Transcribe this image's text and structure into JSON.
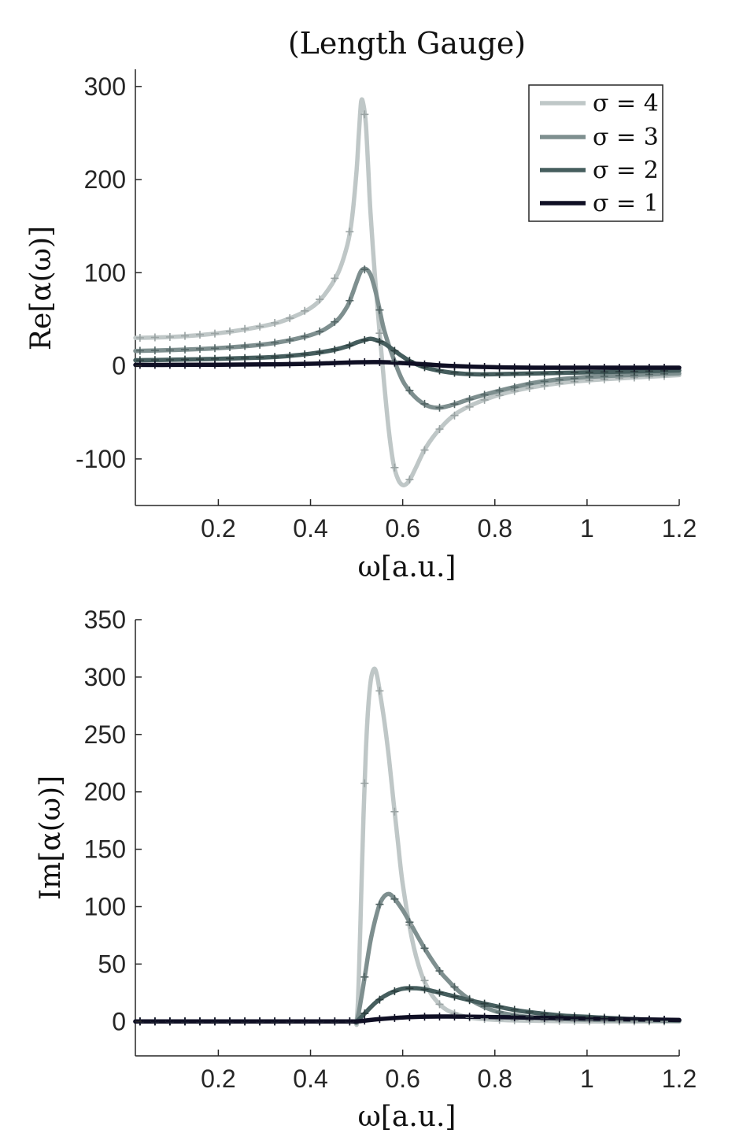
{
  "title": "(Length Gauge)",
  "colors": {
    "sigma4": "#bfc7c7",
    "sigma3": "#7e8f8f",
    "sigma2": "#465e5e",
    "sigma1": "#0f0f24",
    "axis": "#262626"
  },
  "legend": {
    "placement": "top-right",
    "entries": [
      "σ = 4",
      "σ = 3",
      "σ = 2",
      "σ = 1"
    ]
  },
  "chart_data": [
    {
      "type": "line",
      "xlabel": "ω[a.u.]",
      "ylabel": "Re[α(ω)]",
      "xlim": [
        0.02,
        1.2
      ],
      "ylim": [
        -150,
        310
      ],
      "xticks": [
        "0.2",
        "0.4",
        "0.6",
        "0.8",
        "1",
        "1.2"
      ],
      "yticks": [
        "-100",
        "0",
        "100",
        "200",
        "300"
      ],
      "grid": false,
      "series": [
        {
          "name": "σ = 4",
          "x": [
            0.02,
            0.1,
            0.2,
            0.3,
            0.35,
            0.4,
            0.43,
            0.46,
            0.48,
            0.49,
            0.5,
            0.505,
            0.51,
            0.515,
            0.52,
            0.525,
            0.53,
            0.54,
            0.55,
            0.56,
            0.57,
            0.58,
            0.59,
            0.6,
            0.61,
            0.62,
            0.63,
            0.65,
            0.68,
            0.72,
            0.78,
            0.85,
            0.95,
            1.05,
            1.2
          ],
          "y": [
            30,
            31,
            35,
            43,
            50,
            62,
            76,
            100,
            130,
            158,
            210,
            250,
            284,
            280,
            260,
            215,
            165,
            95,
            35,
            -20,
            -70,
            -105,
            -122,
            -128,
            -126,
            -118,
            -108,
            -88,
            -68,
            -50,
            -36,
            -26,
            -18,
            -14,
            -10
          ]
        },
        {
          "name": "σ = 3",
          "x": [
            0.02,
            0.1,
            0.2,
            0.3,
            0.35,
            0.4,
            0.43,
            0.46,
            0.48,
            0.49,
            0.5,
            0.51,
            0.52,
            0.53,
            0.54,
            0.55,
            0.56,
            0.58,
            0.6,
            0.62,
            0.64,
            0.66,
            0.68,
            0.7,
            0.72,
            0.75,
            0.8,
            0.85,
            0.9,
            1.0,
            1.2
          ],
          "y": [
            16,
            17,
            19,
            23,
            27,
            33,
            39,
            50,
            64,
            76,
            90,
            102,
            104,
            98,
            82,
            60,
            38,
            8,
            -16,
            -30,
            -39,
            -44,
            -45,
            -43,
            -40,
            -35,
            -28,
            -22,
            -17,
            -12,
            -8
          ]
        },
        {
          "name": "σ = 2",
          "x": [
            0.02,
            0.1,
            0.2,
            0.3,
            0.35,
            0.4,
            0.45,
            0.48,
            0.5,
            0.52,
            0.53,
            0.54,
            0.56,
            0.58,
            0.6,
            0.62,
            0.65,
            0.7,
            0.75,
            0.8,
            0.9,
            1.0,
            1.2
          ],
          "y": [
            6,
            6.5,
            7.5,
            9,
            10.5,
            13,
            17,
            21,
            25,
            28,
            29,
            28,
            24,
            17,
            10,
            4,
            -2,
            -7,
            -9,
            -9,
            -8,
            -7,
            -5
          ]
        },
        {
          "name": "σ = 1",
          "x": [
            0.02,
            0.1,
            0.2,
            0.3,
            0.4,
            0.45,
            0.5,
            0.55,
            0.6,
            0.65,
            0.7,
            0.8,
            0.9,
            1.0,
            1.2
          ],
          "y": [
            1,
            1,
            1.2,
            1.5,
            2.2,
            3,
            3.8,
            4,
            3,
            1.5,
            0,
            -1.5,
            -2,
            -2,
            -2
          ]
        }
      ]
    },
    {
      "type": "line",
      "xlabel": "ω[a.u.]",
      "ylabel": "Im[α(ω)]",
      "xlim": [
        0.02,
        1.2
      ],
      "ylim": [
        -30,
        350
      ],
      "xticks": [
        "0.2",
        "0.4",
        "0.6",
        "0.8",
        "1",
        "1.2"
      ],
      "yticks": [
        "0",
        "50",
        "100",
        "150",
        "200",
        "250",
        "300",
        "350"
      ],
      "grid": false,
      "series": [
        {
          "name": "σ = 4",
          "x": [
            0.02,
            0.2,
            0.4,
            0.49,
            0.5,
            0.505,
            0.51,
            0.515,
            0.52,
            0.525,
            0.53,
            0.535,
            0.54,
            0.545,
            0.55,
            0.56,
            0.57,
            0.58,
            0.59,
            0.6,
            0.62,
            0.64,
            0.66,
            0.68,
            0.7,
            0.72,
            0.75,
            0.8,
            0.9,
            1.0,
            1.2
          ],
          "y": [
            0,
            0,
            0,
            0,
            0,
            40,
            110,
            180,
            235,
            272,
            295,
            305,
            307,
            300,
            288,
            262,
            230,
            192,
            155,
            120,
            72,
            42,
            25,
            15,
            9,
            6,
            3,
            1.5,
            0.5,
            0,
            0
          ]
        },
        {
          "name": "σ = 3",
          "x": [
            0.02,
            0.2,
            0.4,
            0.49,
            0.5,
            0.51,
            0.52,
            0.53,
            0.54,
            0.55,
            0.56,
            0.57,
            0.58,
            0.6,
            0.62,
            0.65,
            0.68,
            0.7,
            0.72,
            0.75,
            0.8,
            0.85,
            0.9,
            1.0,
            1.1,
            1.2
          ],
          "y": [
            0,
            0,
            0,
            0,
            0,
            20,
            45,
            70,
            88,
            102,
            109,
            111,
            108,
            97,
            83,
            62,
            44,
            35,
            27,
            18,
            9,
            5,
            3,
            1.5,
            1,
            0.5
          ]
        },
        {
          "name": "σ = 2",
          "x": [
            0.02,
            0.2,
            0.4,
            0.49,
            0.5,
            0.52,
            0.54,
            0.56,
            0.58,
            0.6,
            0.62,
            0.64,
            0.66,
            0.7,
            0.75,
            0.8,
            0.85,
            0.9,
            0.95,
            1.0,
            1.1,
            1.2
          ],
          "y": [
            0,
            0,
            0,
            0,
            0,
            8,
            16,
            22,
            26,
            28.5,
            29,
            28.5,
            27,
            23,
            18,
            13.5,
            9.5,
            7,
            5,
            4,
            2,
            1
          ]
        },
        {
          "name": "σ = 1",
          "x": [
            0.02,
            0.2,
            0.4,
            0.49,
            0.5,
            0.55,
            0.6,
            0.65,
            0.7,
            0.75,
            0.8,
            0.9,
            1.0,
            1.1,
            1.2
          ],
          "y": [
            0,
            0,
            0,
            0,
            0,
            2,
            3.5,
            4.2,
            4.3,
            4.1,
            3.8,
            3.2,
            2.5,
            1.8,
            1.3
          ]
        }
      ]
    }
  ]
}
